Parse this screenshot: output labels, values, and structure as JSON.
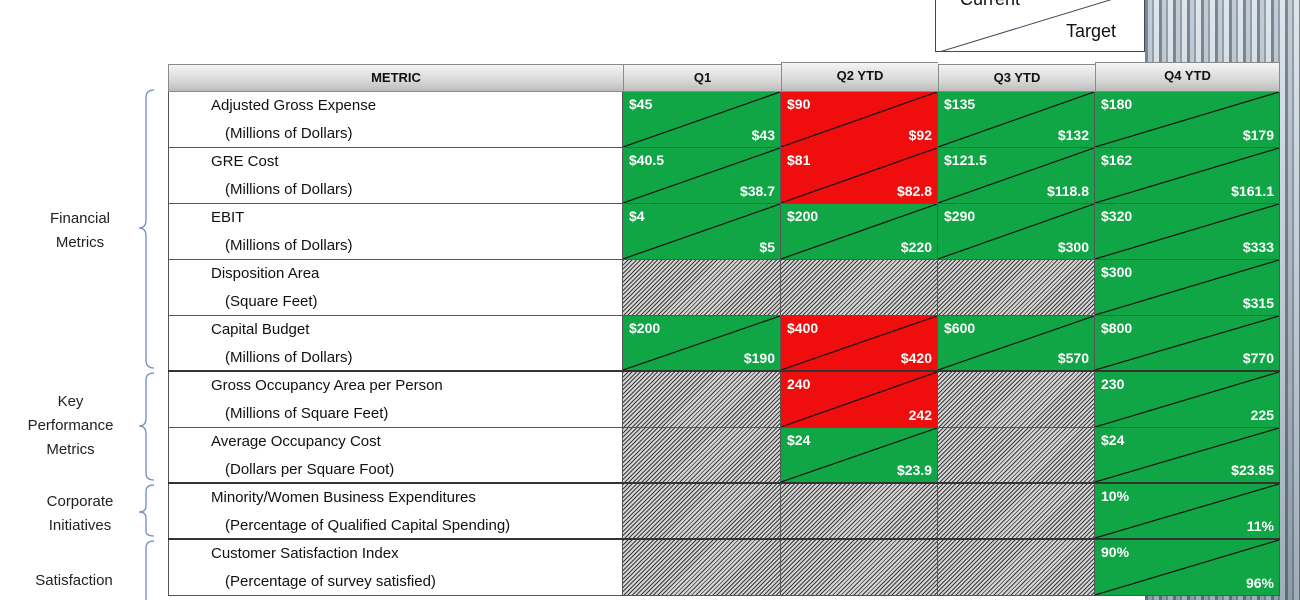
{
  "legend": {
    "current": "Current",
    "target": "Target"
  },
  "header": {
    "metric": "METRIC",
    "q1": "Q1",
    "q2": "Q2 YTD",
    "q3": "Q3 YTD",
    "q4": "Q4 YTD"
  },
  "groups": [
    {
      "line1": "Financial",
      "line2": "Metrics"
    },
    {
      "line1": "Key",
      "line2": "Performance",
      "line3": "Metrics"
    },
    {
      "line1": "Corporate",
      "line2": "Initiatives"
    },
    {
      "line1": "Satisfaction"
    }
  ],
  "rows": [
    {
      "name": "Adjusted Gross Expense",
      "unit": "(Millions of Dollars)",
      "cells": [
        {
          "status": "green",
          "current": "$45",
          "target": "$43"
        },
        {
          "status": "red",
          "current": "$90",
          "target": "$92"
        },
        {
          "status": "green",
          "current": "$135",
          "target": "$132"
        },
        {
          "status": "green",
          "current": "$180",
          "target": "$179"
        }
      ]
    },
    {
      "name": "GRE Cost",
      "unit": "(Millions of Dollars)",
      "cells": [
        {
          "status": "green",
          "current": "$40.5",
          "target": "$38.7"
        },
        {
          "status": "red",
          "current": "$81",
          "target": "$82.8"
        },
        {
          "status": "green",
          "current": "$121.5",
          "target": "$118.8"
        },
        {
          "status": "green",
          "current": "$162",
          "target": "$161.1"
        }
      ]
    },
    {
      "name": "EBIT",
      "unit": "(Millions of Dollars)",
      "cells": [
        {
          "status": "green",
          "current": "$4",
          "target": "$5"
        },
        {
          "status": "green",
          "current": "$200",
          "target": "$220"
        },
        {
          "status": "green",
          "current": "$290",
          "target": "$300"
        },
        {
          "status": "green",
          "current": "$320",
          "target": "$333"
        }
      ]
    },
    {
      "name": "Disposition Area",
      "unit": "(Square Feet)",
      "cells": [
        {
          "status": "na",
          "current": "",
          "target": ""
        },
        {
          "status": "na",
          "current": "",
          "target": ""
        },
        {
          "status": "na",
          "current": "",
          "target": ""
        },
        {
          "status": "green",
          "current": "$300",
          "target": "$315"
        }
      ]
    },
    {
      "name": "Capital Budget",
      "unit": "(Millions of Dollars)",
      "cells": [
        {
          "status": "green",
          "current": "$200",
          "target": "$190"
        },
        {
          "status": "red",
          "current": "$400",
          "target": "$420"
        },
        {
          "status": "green",
          "current": "$600",
          "target": "$570"
        },
        {
          "status": "green",
          "current": "$800",
          "target": "$770"
        }
      ]
    },
    {
      "name": "Gross Occupancy Area per Person",
      "unit": "(Millions of Square Feet)",
      "cells": [
        {
          "status": "na",
          "current": "",
          "target": ""
        },
        {
          "status": "red",
          "current": "240",
          "target": "242"
        },
        {
          "status": "na",
          "current": "",
          "target": ""
        },
        {
          "status": "green",
          "current": "230",
          "target": "225"
        }
      ]
    },
    {
      "name": "Average Occupancy Cost",
      "unit": "(Dollars per Square Foot)",
      "cells": [
        {
          "status": "na",
          "current": "",
          "target": ""
        },
        {
          "status": "green",
          "current": "$24",
          "target": "$23.9"
        },
        {
          "status": "na",
          "current": "",
          "target": ""
        },
        {
          "status": "green",
          "current": "$24",
          "target": "$23.85"
        }
      ]
    },
    {
      "name": "Minority/Women Business Expenditures",
      "unit": "(Percentage of Qualified Capital Spending)",
      "cells": [
        {
          "status": "na",
          "current": "",
          "target": ""
        },
        {
          "status": "na",
          "current": "",
          "target": ""
        },
        {
          "status": "na",
          "current": "",
          "target": ""
        },
        {
          "status": "green",
          "current": "10%",
          "target": "11%"
        }
      ]
    },
    {
      "name": "Customer Satisfaction Index",
      "unit": "(Percentage of survey satisfied)",
      "cells": [
        {
          "status": "na",
          "current": "",
          "target": ""
        },
        {
          "status": "na",
          "current": "",
          "target": ""
        },
        {
          "status": "na",
          "current": "",
          "target": ""
        },
        {
          "status": "green",
          "current": "90%",
          "target": "96%"
        }
      ]
    }
  ],
  "colors": {
    "green": "#10a545",
    "red": "#f00d0d",
    "header": "#d8d8d8"
  }
}
